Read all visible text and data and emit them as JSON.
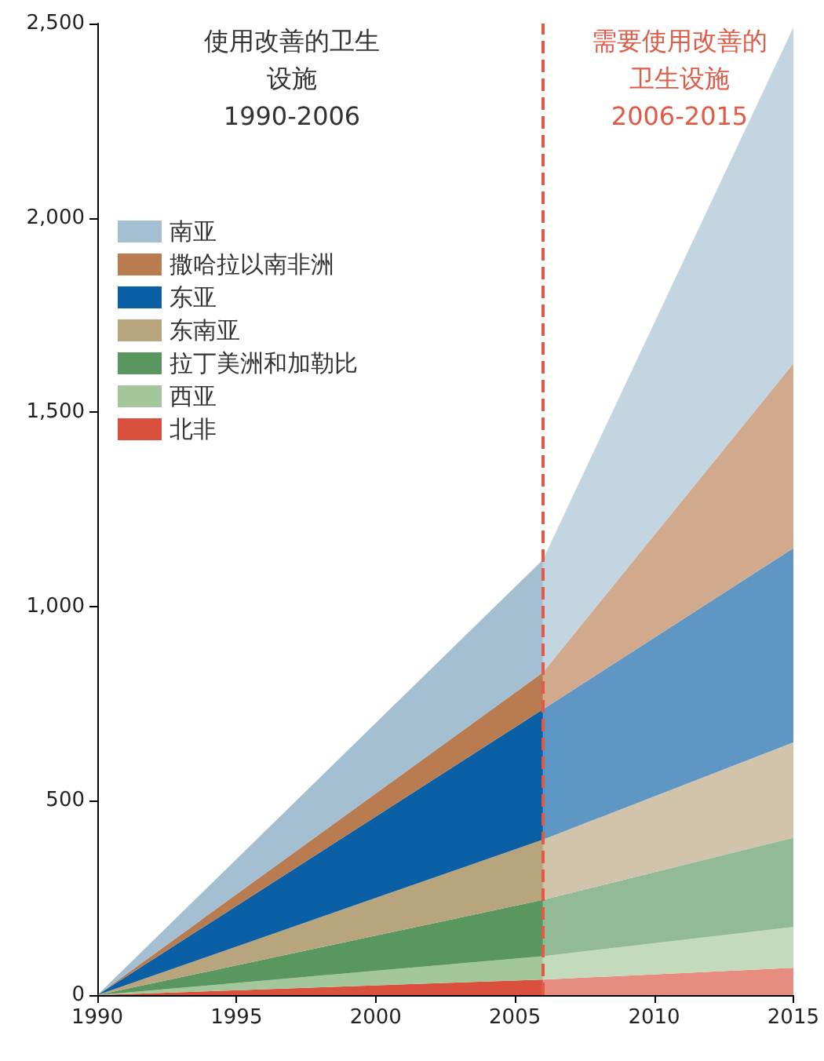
{
  "chart_data": {
    "type": "area",
    "stacked": true,
    "annotations": [
      "使用改善的卫生设施\n1990-2006",
      "需要使用改善的卫生设施\n2006-2015"
    ],
    "series": [
      {
        "name": "北非",
        "color": "#d9503d",
        "x": [
          1990,
          2006,
          2015
        ],
        "values": [
          0,
          40,
          70
        ]
      },
      {
        "name": "西亚",
        "color": "#a3c79a",
        "x": [
          1990,
          2006,
          2015
        ],
        "values": [
          0,
          60,
          105
        ]
      },
      {
        "name": "拉丁美洲和加勒比",
        "color": "#5a9660",
        "x": [
          1990,
          2006,
          2015
        ],
        "values": [
          0,
          145,
          230
        ]
      },
      {
        "name": "东南亚",
        "color": "#b8a57d",
        "x": [
          1990,
          2006,
          2015
        ],
        "values": [
          0,
          155,
          245
        ]
      },
      {
        "name": "东亚",
        "color": "#0a5fa5",
        "x": [
          1990,
          2006,
          2015
        ],
        "values": [
          0,
          335,
          500
        ]
      },
      {
        "name": "撒哈拉以南非洲",
        "color": "#b87c50",
        "x": [
          1990,
          2006,
          2015
        ],
        "values": [
          0,
          95,
          475
        ]
      },
      {
        "name": "南亚",
        "color": "#a3bfd1",
        "x": [
          1990,
          2006,
          2015
        ],
        "values": [
          0,
          290,
          865
        ]
      }
    ],
    "bands": [
      {
        "axis": "x",
        "from": 2006,
        "to": 2015,
        "label": null,
        "color": "#ffffff"
      }
    ],
    "xlim": [
      1990,
      2015
    ],
    "xticks": [
      1990,
      1995,
      2000,
      2005,
      2010,
      2015
    ],
    "ylim": [
      0,
      2500
    ],
    "yticks": [
      0,
      500,
      {
        "value": 1000,
        "label": "1,000"
      },
      {
        "value": 1500,
        "label": "1,500"
      },
      {
        "value": 2000,
        "label": "2,000"
      },
      {
        "value": 2500,
        "label": "2,500"
      }
    ],
    "ref_lines": [
      {
        "axis": "x",
        "value": 2006,
        "label": null,
        "color": "#e05a45",
        "line_style": "dashed"
      }
    ],
    "grid": false,
    "legend": "top left"
  }
}
